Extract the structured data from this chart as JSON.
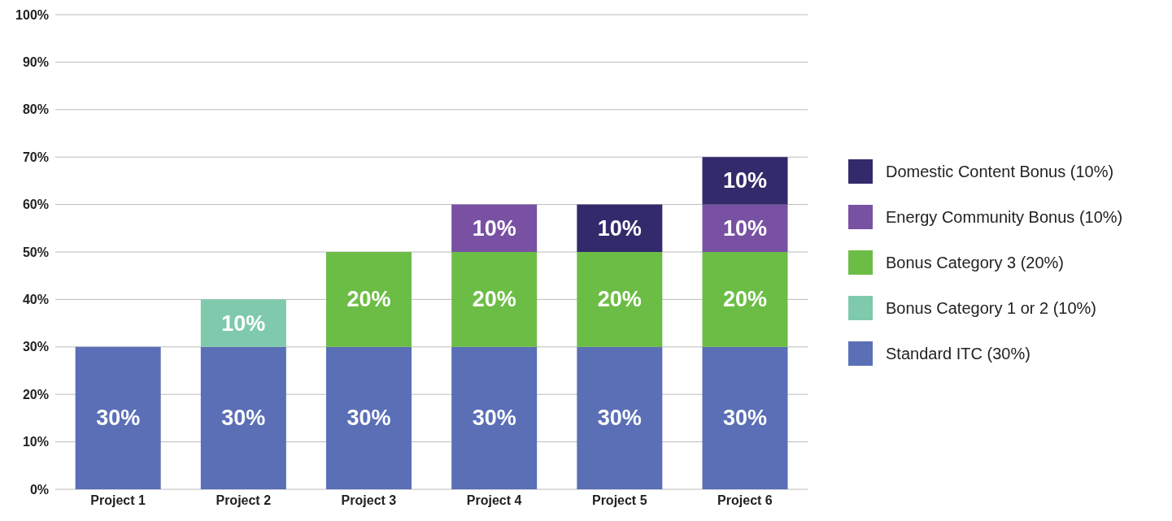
{
  "chart_data": {
    "type": "bar",
    "stacked": true,
    "categories": [
      "Project 1",
      "Project 2",
      "Project 3",
      "Project 4",
      "Project 5",
      "Project 6"
    ],
    "series": [
      {
        "name": "Standard ITC (30%)",
        "color": "#5a6fb5",
        "values": [
          30,
          30,
          30,
          30,
          30,
          30
        ],
        "value_labels": [
          "30%",
          "30%",
          "30%",
          "30%",
          "30%",
          "30%"
        ]
      },
      {
        "name": "Bonus Category 1 or 2 (10%)",
        "color": "#7fc9ac",
        "values": [
          null,
          10,
          null,
          null,
          null,
          null
        ],
        "value_labels": [
          null,
          "10%",
          null,
          null,
          null,
          null
        ]
      },
      {
        "name": "Bonus Category 3 (20%)",
        "color": "#6cbd45",
        "values": [
          null,
          null,
          20,
          20,
          20,
          20
        ],
        "value_labels": [
          null,
          null,
          "20%",
          "20%",
          "20%",
          "20%"
        ]
      },
      {
        "name": "Energy Community Bonus (10%)",
        "color": "#7851a3",
        "values": [
          null,
          null,
          null,
          10,
          null,
          10
        ],
        "value_labels": [
          null,
          null,
          null,
          "10%",
          null,
          "10%"
        ]
      },
      {
        "name": "Domestic Content Bonus (10%)",
        "color": "#332a6b",
        "values": [
          null,
          null,
          null,
          null,
          10,
          10
        ],
        "value_labels": [
          null,
          null,
          null,
          null,
          "10%",
          "10%"
        ]
      }
    ],
    "ylim": [
      0,
      100
    ],
    "yticks": [
      {
        "value": 0,
        "label": "0%"
      },
      {
        "value": 10,
        "label": "10%"
      },
      {
        "value": 20,
        "label": "20%"
      },
      {
        "value": 30,
        "label": "30%"
      },
      {
        "value": 40,
        "label": "40%"
      },
      {
        "value": 50,
        "label": "50%"
      },
      {
        "value": 60,
        "label": "60%"
      },
      {
        "value": 70,
        "label": "70%"
      },
      {
        "value": 80,
        "label": "80%"
      },
      {
        "value": 90,
        "label": "90%"
      },
      {
        "value": 100,
        "label": "100%"
      }
    ],
    "grid": "y",
    "legend": "right"
  }
}
